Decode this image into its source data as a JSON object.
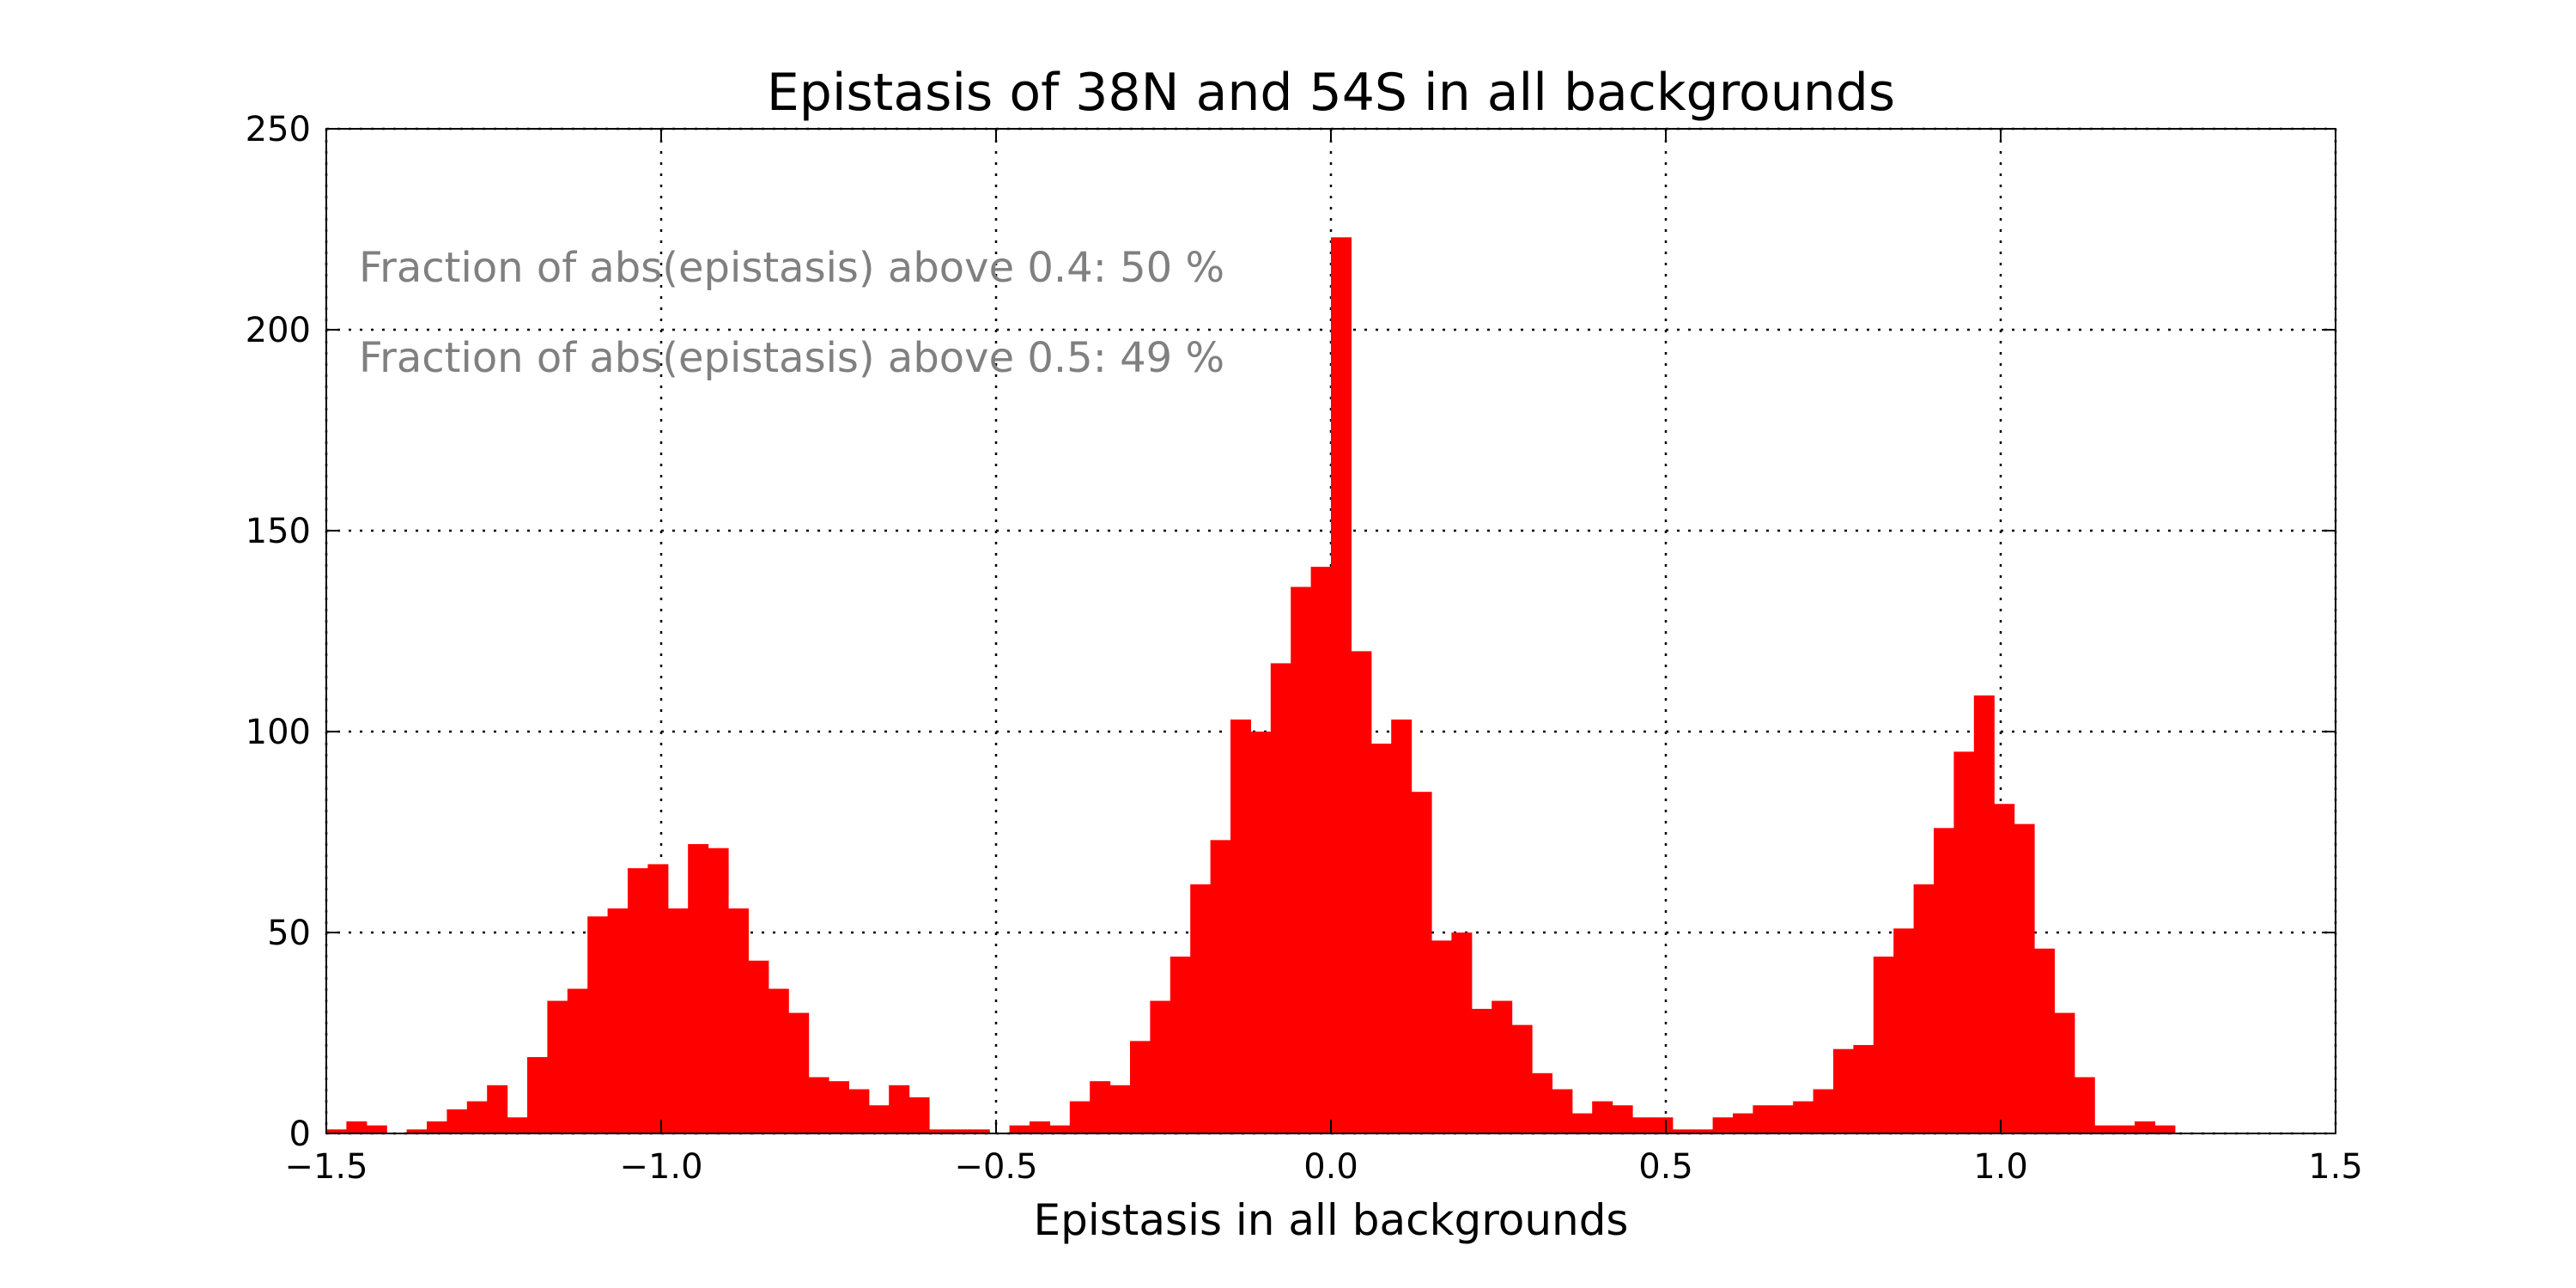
{
  "chart_data": {
    "type": "bar",
    "title": "Epistasis of 38N and 54S in all backgrounds",
    "xlabel": "Epistasis in all backgrounds",
    "ylabel": "",
    "xlim": [
      -1.5,
      1.5
    ],
    "ylim": [
      0,
      250
    ],
    "grid": true,
    "bar_color": "#ff0000",
    "x_ticks": [
      -1.5,
      -1.0,
      -0.5,
      0.0,
      0.5,
      1.0,
      1.5
    ],
    "x_tick_labels": [
      "−1.5",
      "−1.0",
      "−0.5",
      "0.0",
      "0.5",
      "1.0",
      "1.5"
    ],
    "y_ticks": [
      0,
      50,
      100,
      150,
      200,
      250
    ],
    "y_tick_labels": [
      "0",
      "50",
      "100",
      "150",
      "200",
      "250"
    ],
    "bin_start": -1.5,
    "bin_width": 0.03,
    "values": [
      1,
      3,
      2,
      0,
      1,
      3,
      6,
      8,
      12,
      4,
      19,
      33,
      36,
      54,
      56,
      66,
      67,
      56,
      72,
      71,
      56,
      43,
      36,
      30,
      14,
      13,
      11,
      7,
      12,
      9,
      1,
      1,
      1,
      0,
      2,
      3,
      2,
      8,
      13,
      12,
      23,
      33,
      44,
      62,
      73,
      103,
      100,
      117,
      136,
      141,
      223,
      120,
      97,
      103,
      85,
      48,
      50,
      31,
      33,
      27,
      15,
      11,
      5,
      8,
      7,
      4,
      4,
      1,
      1,
      4,
      5,
      7,
      7,
      8,
      11,
      21,
      22,
      44,
      51,
      62,
      76,
      95,
      109,
      82,
      77,
      46,
      30,
      14,
      2,
      2,
      3,
      2,
      0,
      0,
      0,
      0,
      0,
      0,
      0,
      0
    ],
    "annotations": [
      "Fraction of abs(epistasis) above 0.4: 50 %",
      "Fraction of abs(epistasis) above 0.5: 49 %"
    ]
  }
}
